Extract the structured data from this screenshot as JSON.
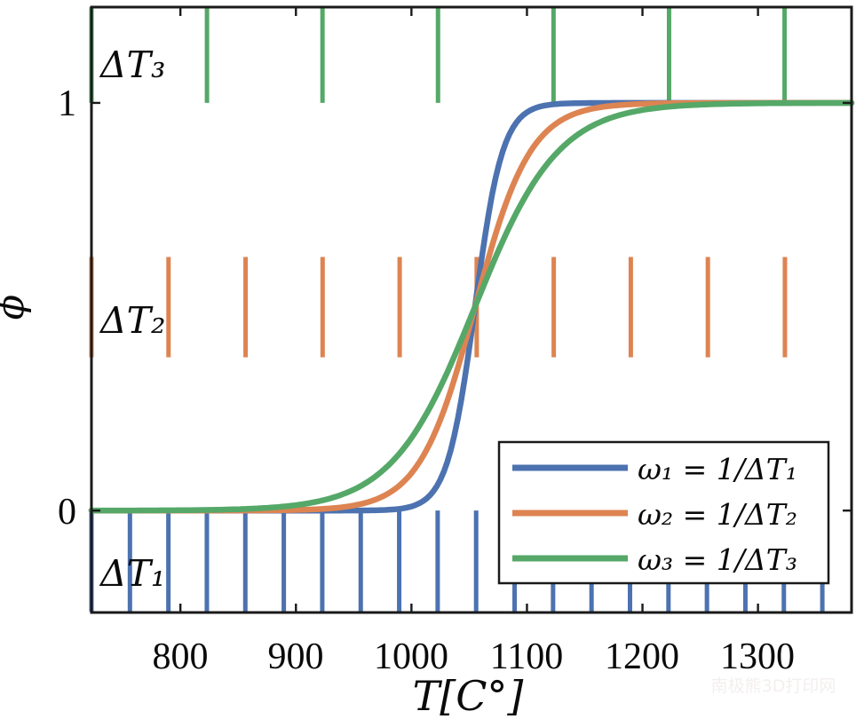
{
  "chart_data": {
    "type": "line",
    "title": "",
    "xlabel": "T[C°]",
    "ylabel": "ϕ",
    "xlim": [
      723,
      1381
    ],
    "ylim": [
      -0.25,
      1.235
    ],
    "x_ticks": [
      800,
      900,
      1000,
      1100,
      1200,
      1300
    ],
    "y_ticks": [
      0,
      1
    ],
    "grid": false,
    "legend_position": "lower right",
    "series": [
      {
        "name": "ω₁ = 1/ΔT₁",
        "color": "#4C72B0",
        "shape": "logistic-sigmoid",
        "T0": 1055,
        "width": 12,
        "delta_T": 33.3
      },
      {
        "name": "ω₂ = 1/ΔT₂",
        "color": "#DD8452",
        "shape": "logistic-sigmoid",
        "T0": 1055,
        "width": 24,
        "delta_T": 66.7
      },
      {
        "name": "ω₃ = 1/ΔT₃",
        "color": "#55A868",
        "shape": "logistic-sigmoid",
        "T0": 1055,
        "width": 36,
        "delta_T": 100
      }
    ],
    "comb_rulers": [
      {
        "label": "ΔT₁",
        "color": "#4C72B0",
        "start_T": 723,
        "spacing_T": 33.3,
        "count": 20,
        "phi_band": [
          -0.248,
          0.0
        ]
      },
      {
        "label": "ΔT₂",
        "color": "#DD8452",
        "start_T": 723,
        "spacing_T": 66.7,
        "count": 10,
        "phi_band": [
          0.376,
          0.622
        ]
      },
      {
        "label": "ΔT₃",
        "color": "#55A868",
        "start_T": 723,
        "spacing_T": 100.0,
        "count": 7,
        "phi_band": [
          1.0,
          1.235
        ]
      }
    ]
  },
  "watermark": "南极熊3D打印网",
  "colors": {
    "axis": "#1a1a1a",
    "text": "#0a0a0a",
    "background": "#ffffff",
    "watermark": "#f3efee",
    "series_blue": "#4C72B0",
    "series_orange": "#DD8452",
    "series_green": "#55A868"
  }
}
